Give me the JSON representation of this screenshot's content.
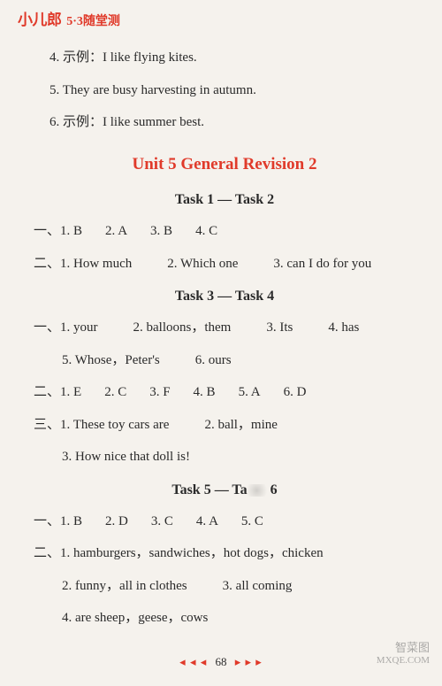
{
  "colors": {
    "accent_red": "#e03a2a",
    "text": "#2a2a2a",
    "page_bg": "#f5f2ed",
    "footer_accent": "#e03a2a"
  },
  "brand": {
    "logo": "小儿郎",
    "sub": "5·3随堂测"
  },
  "intro_lines": [
    {
      "n": "4.",
      "label": "示例：",
      "text": "I like flying kites."
    },
    {
      "n": "5.",
      "label": "",
      "text": "They are busy harvesting in autumn."
    },
    {
      "n": "6.",
      "label": "示例：",
      "text": "I like summer best."
    }
  ],
  "unit_title": "Unit 5   General Revision 2",
  "sections": [
    {
      "heading": "Task 1 — Task 2",
      "groups": [
        {
          "label": "一、",
          "items": [
            "1. B",
            "2. A",
            "3. B",
            "4. C"
          ],
          "gap": "m"
        },
        {
          "label": "二、",
          "items": [
            "1. How much",
            "2. Which one",
            "3. can I do for you"
          ],
          "gap": "l"
        }
      ]
    },
    {
      "heading": "Task 3 — Task 4",
      "groups": [
        {
          "label": "一、",
          "items": [
            "1. your",
            "2. balloons，them",
            "3. Its",
            "4. has"
          ],
          "gap": "l",
          "cont": [
            "5. Whose，Peter's",
            "6. ours"
          ]
        },
        {
          "label": "二、",
          "items": [
            "1. E",
            "2. C",
            "3. F",
            "4. B",
            "5. A",
            "6. D"
          ],
          "gap": "m"
        },
        {
          "label": "三、",
          "items": [
            "1. These toy cars are",
            "2. ball，mine"
          ],
          "gap": "l",
          "cont": [
            "3. How nice that doll is!"
          ]
        }
      ]
    },
    {
      "heading": "Task 5 — Task 6",
      "heading_display": "Task 5 — Ta",
      "heading_tail": "6",
      "smudge": true,
      "groups": [
        {
          "label": "一、",
          "items": [
            "1. B",
            "2. D",
            "3. C",
            "4. A",
            "5. C"
          ],
          "gap": "m"
        },
        {
          "label": "二、",
          "items": [
            "1. hamburgers，sandwiches，hot dogs，chicken"
          ],
          "gap": "s",
          "cont": [
            "2. funny，all in clothes",
            "3. all coming"
          ],
          "cont2": [
            "4. are sheep，geese，cows"
          ]
        }
      ]
    }
  ],
  "footer": {
    "left_dots": "◂ ◂ ◂",
    "page_num": "68",
    "right_dots": "▸ ▸ ▸"
  },
  "watermark": {
    "line1": "智菜图",
    "line2": "MXQE.COM"
  }
}
